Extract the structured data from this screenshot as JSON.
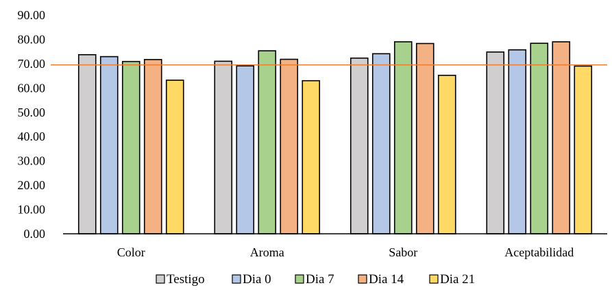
{
  "chart_data": {
    "type": "bar",
    "categories": [
      "Color",
      "Aroma",
      "Sabor",
      "Aceptabilidad"
    ],
    "series": [
      {
        "name": "Testigo",
        "color": "#D0CECE",
        "values": [
          73.7,
          71.0,
          72.3,
          74.8
        ]
      },
      {
        "name": "Dia 0",
        "color": "#B4C7E7",
        "values": [
          72.9,
          69.1,
          74.1,
          75.7
        ]
      },
      {
        "name": "Dia 7",
        "color": "#A9D18E",
        "values": [
          70.9,
          75.3,
          79.0,
          78.4
        ]
      },
      {
        "name": "Dia 14",
        "color": "#F4B183",
        "values": [
          71.7,
          71.8,
          78.3,
          79.0
        ]
      },
      {
        "name": "Dia 21",
        "color": "#FFD966",
        "values": [
          63.2,
          63.0,
          65.2,
          69.0
        ]
      }
    ],
    "reference_line": {
      "value": 69.5,
      "color": "#ED7D31"
    },
    "ylim": [
      0,
      90
    ],
    "yticks": [
      "0.00",
      "10.00",
      "20.00",
      "30.00",
      "40.00",
      "50.00",
      "60.00",
      "70.00",
      "80.00",
      "90.00"
    ],
    "grid": false,
    "legend_position": "bottom"
  }
}
